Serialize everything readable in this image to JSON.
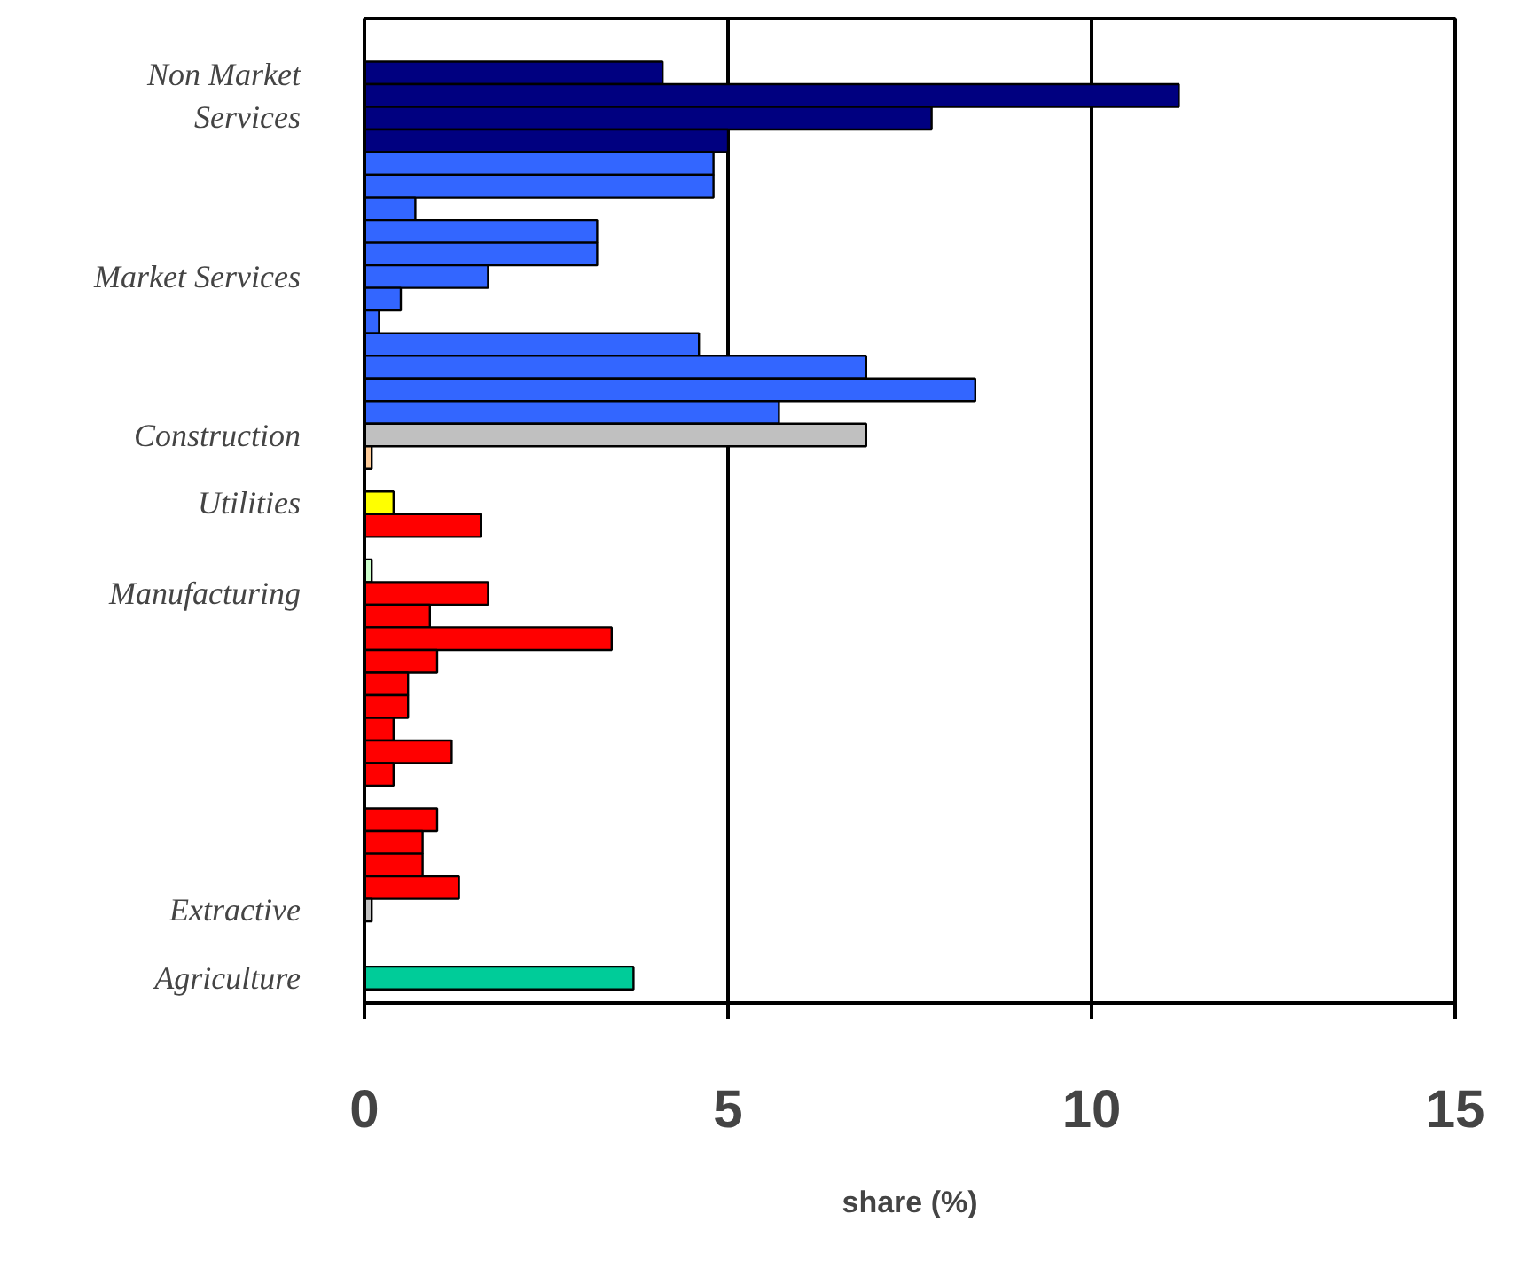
{
  "chart_data": {
    "type": "bar",
    "orientation": "horizontal",
    "xlabel": "share (%)",
    "categories": [
      null,
      "Non Market Services",
      null,
      null,
      null,
      null,
      null,
      null,
      null,
      "Market Services",
      null,
      null,
      null,
      null,
      null,
      null,
      "Construction",
      null,
      null,
      "Utilities",
      null,
      null,
      null,
      "Manufacturing",
      null,
      null,
      null,
      null,
      null,
      null,
      null,
      null,
      null,
      null,
      null,
      null,
      null,
      "Extractive",
      null,
      null,
      "Agriculture"
    ],
    "values": [
      4.1,
      11.2,
      7.8,
      5.0,
      4.8,
      4.8,
      0.7,
      3.2,
      3.2,
      1.7,
      0.5,
      0.2,
      4.6,
      6.9,
      8.4,
      5.7,
      6.9,
      0.1,
      null,
      0.4,
      1.6,
      null,
      0.1,
      1.7,
      0.9,
      3.4,
      1.0,
      0.6,
      0.6,
      0.4,
      1.2,
      0.4,
      null,
      1.0,
      0.8,
      0.8,
      1.3,
      0.1,
      null,
      null,
      3.7
    ],
    "colors": [
      "#000080",
      "#000080",
      "#000080",
      "#000080",
      "#3366ff",
      "#3366ff",
      "#3366ff",
      "#3366ff",
      "#3366ff",
      "#3366ff",
      "#3366ff",
      "#3366ff",
      "#3366ff",
      "#3366ff",
      "#3366ff",
      "#3366ff",
      "#c0c0c0",
      "#ffcc99",
      "#ffffff",
      "#ffff00",
      "#ff0000",
      "#ffffff",
      "#ccffcc",
      "#ff0000",
      "#ff0000",
      "#ff0000",
      "#ff0000",
      "#ff0000",
      "#ff0000",
      "#ff0000",
      "#ff0000",
      "#ff0000",
      "#ffffff",
      "#ff0000",
      "#ff0000",
      "#ff0000",
      "#ff0000",
      "#c0c0c0",
      "#ffffff",
      "#ffffff",
      "#00cc99"
    ],
    "xlim": [
      0,
      15
    ],
    "xticks": [
      0,
      5,
      10,
      15
    ],
    "grid": "x"
  }
}
